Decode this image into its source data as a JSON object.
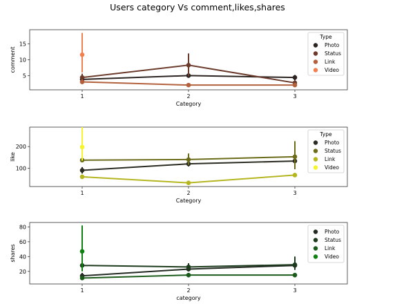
{
  "figure": {
    "title": "Users category Vs comment,likes,shares"
  },
  "chart_data": [
    {
      "type": "line",
      "ylabel": "comment",
      "xlabel": "Category",
      "x": [
        1,
        2,
        3
      ],
      "ylim": [
        0.5,
        19.5
      ],
      "yticks": [
        5,
        10,
        15
      ],
      "grid": false,
      "legend": {
        "title": "Type",
        "placement": "top-right"
      },
      "series": [
        {
          "name": "Photo",
          "color": "#2b2320",
          "values": [
            3.8,
            5.0,
            4.4
          ],
          "ci": [
            [
              3.3,
              4.3
            ],
            [
              4.3,
              5.6
            ],
            [
              3.5,
              5.2
            ]
          ]
        },
        {
          "name": "Status",
          "color": "#6b3a2b",
          "values": [
            4.4,
            8.3,
            2.7
          ],
          "ci": [
            [
              3.3,
              5.6
            ],
            [
              4.8,
              12.0
            ],
            [
              1.9,
              3.5
            ]
          ]
        },
        {
          "name": "Link",
          "color": "#b3603c",
          "values": [
            3.0,
            2.0,
            2.0
          ],
          "ci": [
            [
              2.3,
              3.8
            ],
            [
              1.7,
              2.3
            ],
            [
              1.6,
              2.4
            ]
          ]
        },
        {
          "name": "Video",
          "color": "#f08050",
          "values": [
            11.6,
            null,
            null
          ],
          "ci": [
            [
              6.0,
              18.5
            ],
            null,
            null
          ]
        }
      ]
    },
    {
      "type": "line",
      "ylabel": "like",
      "xlabel": "Category",
      "x": [
        1,
        2,
        3
      ],
      "ylim": [
        15,
        290
      ],
      "yticks": [
        100,
        200
      ],
      "grid": false,
      "legend": {
        "title": "Type",
        "placement": "top-right"
      },
      "series": [
        {
          "name": "Photo",
          "color": "#2b2b22",
          "values": [
            90,
            120,
            133
          ],
          "ci": [
            [
              75,
              105
            ],
            [
              108,
              132
            ],
            [
              120,
              148
            ]
          ]
        },
        {
          "name": "Status",
          "color": "#6b6b1a",
          "values": [
            137,
            140,
            153
          ],
          "ci": [
            [
              128,
              146
            ],
            [
              115,
              168
            ],
            [
              95,
              225
            ]
          ]
        },
        {
          "name": "Link",
          "color": "#b5b520",
          "values": [
            60,
            32,
            68
          ],
          "ci": [
            [
              50,
              70
            ],
            [
              26,
              38
            ],
            [
              58,
              78
            ]
          ]
        },
        {
          "name": "Video",
          "color": "#f5f530",
          "values": [
            198,
            null,
            null
          ],
          "ci": [
            [
              135,
              290
            ],
            null,
            null
          ]
        }
      ]
    },
    {
      "type": "line",
      "ylabel": "shares",
      "xlabel": "category",
      "x": [
        1,
        2,
        3
      ],
      "ylim": [
        3,
        86
      ],
      "yticks": [
        20,
        40,
        60,
        80
      ],
      "grid": false,
      "legend": {
        "title": "",
        "placement": "top-right"
      },
      "series": [
        {
          "name": "Photo",
          "color": "#222a22",
          "values": [
            14,
            23,
            28
          ],
          "ci": [
            [
              10,
              18
            ],
            [
              20,
              26
            ],
            [
              24,
              32
            ]
          ]
        },
        {
          "name": "Status",
          "color": "#1c3a1c",
          "values": [
            28,
            26,
            29
          ],
          "ci": [
            [
              23,
              33
            ],
            [
              21,
              31
            ],
            [
              22,
              40
            ]
          ]
        },
        {
          "name": "Link",
          "color": "#1a5a1a",
          "values": [
            11,
            15,
            15
          ],
          "ci": [
            [
              9,
              13
            ],
            [
              12,
              18
            ],
            [
              12,
              18
            ]
          ]
        },
        {
          "name": "Video",
          "color": "#108010",
          "values": [
            47,
            null,
            null
          ],
          "ci": [
            [
              20,
              82
            ],
            null,
            null
          ]
        }
      ]
    }
  ]
}
